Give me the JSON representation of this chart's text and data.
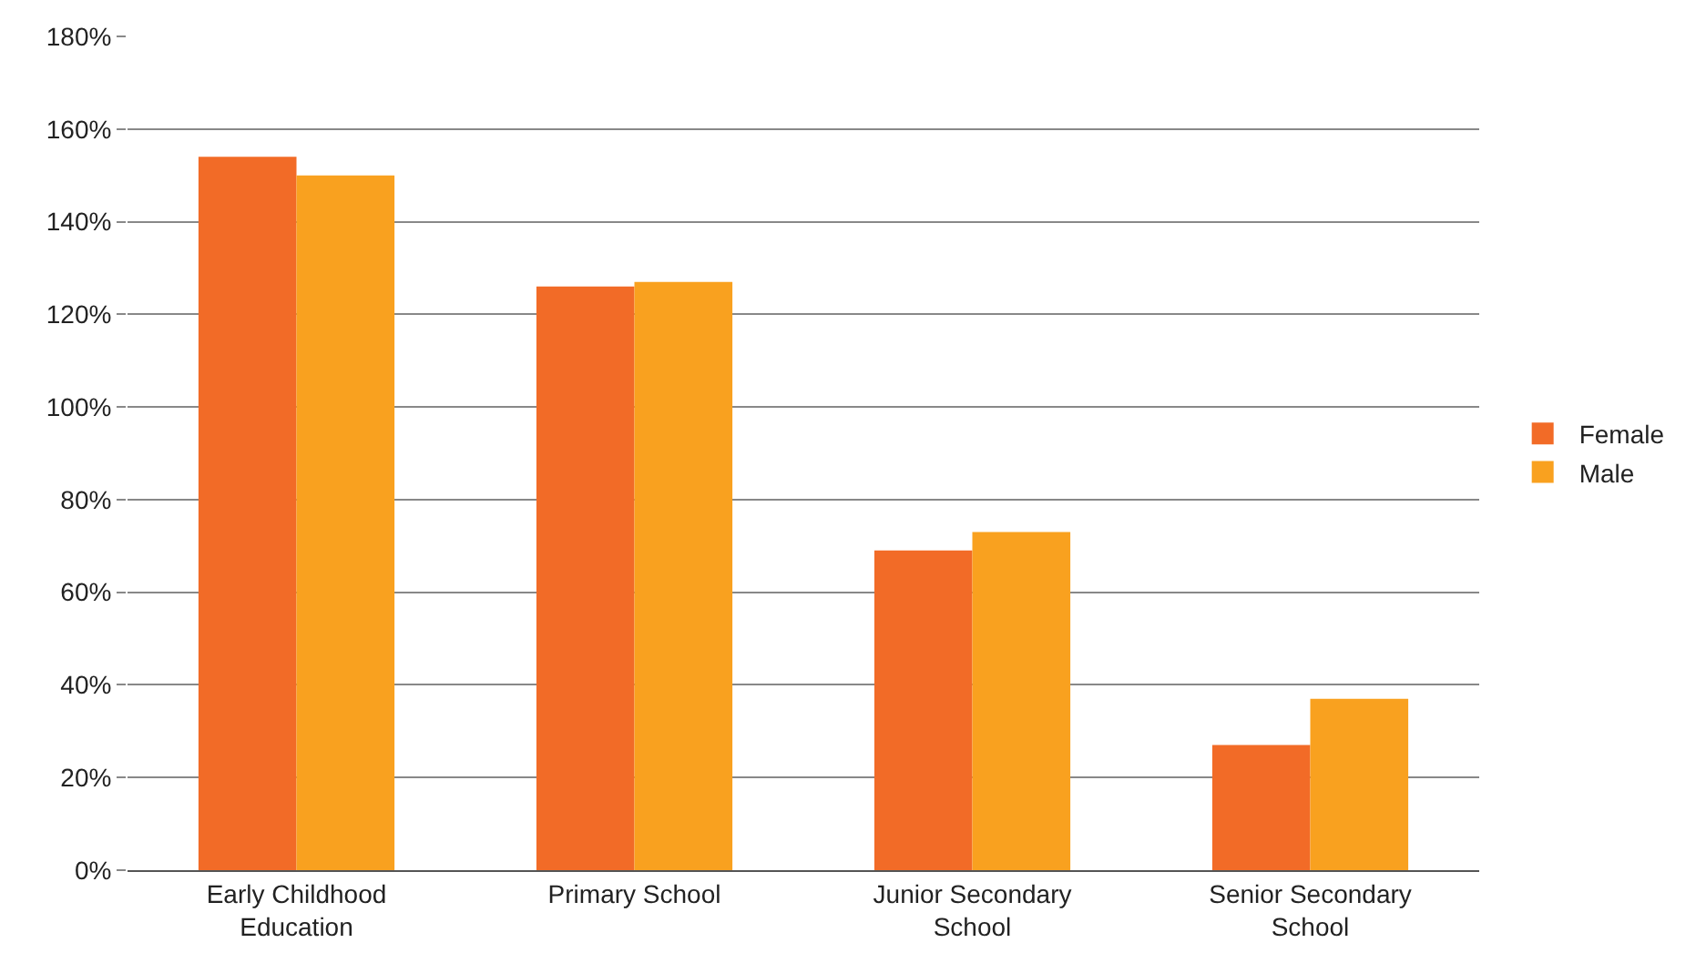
{
  "chart_data": {
    "type": "bar",
    "categories": [
      "Early Childhood Education",
      "Primary School",
      "Junior Secondary School",
      "Senior Secondary School"
    ],
    "series": [
      {
        "name": "Female",
        "color": "#f26b27",
        "values": [
          154,
          126,
          69,
          27
        ]
      },
      {
        "name": "Male",
        "color": "#f9a11f",
        "values": [
          150,
          127,
          73,
          37
        ]
      }
    ],
    "ylim": [
      0,
      180
    ],
    "yticks": [
      {
        "value": 0,
        "label": "0%"
      },
      {
        "value": 20,
        "label": "20%"
      },
      {
        "value": 40,
        "label": "40%"
      },
      {
        "value": 60,
        "label": "60%"
      },
      {
        "value": 80,
        "label": "80%"
      },
      {
        "value": 100,
        "label": "100%"
      },
      {
        "value": 120,
        "label": "120%"
      },
      {
        "value": 140,
        "label": "140%"
      },
      {
        "value": 160,
        "label": "160%"
      },
      {
        "value": 180,
        "label": "180%"
      }
    ],
    "grid": "y",
    "legend": "right"
  }
}
